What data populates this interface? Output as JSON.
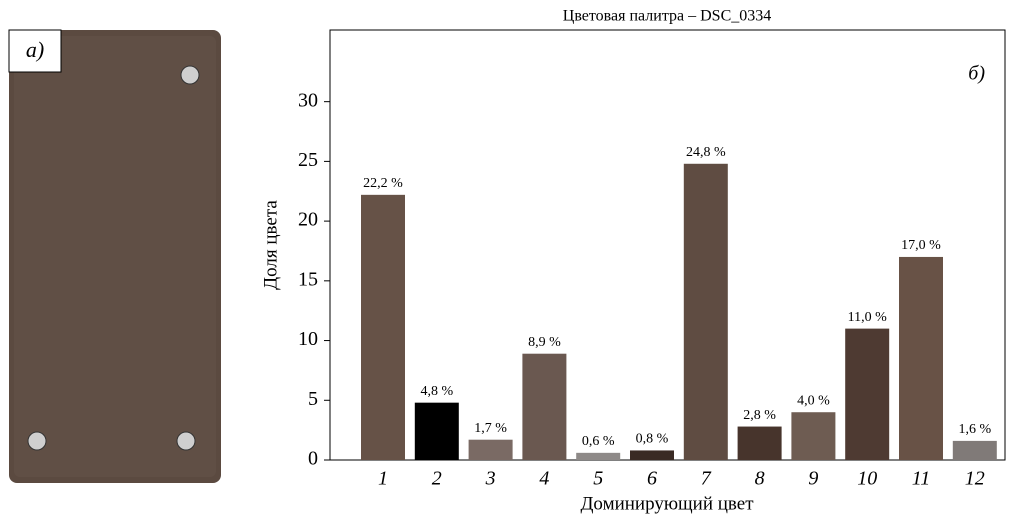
{
  "panel_label": "а)",
  "chart_data": {
    "type": "bar",
    "title": "Цветовая палитра – DSC_0334",
    "annotation": "б)",
    "xlabel": "Доминирующий цвет",
    "ylabel": "Доля цвета",
    "categories": [
      "1",
      "2",
      "3",
      "4",
      "5",
      "6",
      "7",
      "8",
      "9",
      "10",
      "11",
      "12"
    ],
    "values": [
      22.2,
      4.8,
      1.7,
      8.9,
      0.6,
      0.8,
      24.8,
      2.8,
      4.0,
      11.0,
      17.0,
      1.6
    ],
    "value_labels": [
      "22,2 %",
      "4,8 %",
      "1,7 %",
      "8,9 %",
      "0,6 %",
      "0,8 %",
      "24,8 %",
      "2,8 %",
      "4,0 %",
      "11,0 %",
      "17,0 %",
      "1,6 %"
    ],
    "colors": [
      "#665247",
      "#000000",
      "#7a6a64",
      "#6a5850",
      "#8e8a88",
      "#3a2a24",
      "#5f4c42",
      "#47342c",
      "#6e5c52",
      "#4e3a32",
      "#685246",
      "#807a78"
    ],
    "ylim": [
      0,
      36
    ],
    "yticks": [
      0,
      5,
      10,
      15,
      20,
      25,
      30
    ],
    "grid": false
  }
}
